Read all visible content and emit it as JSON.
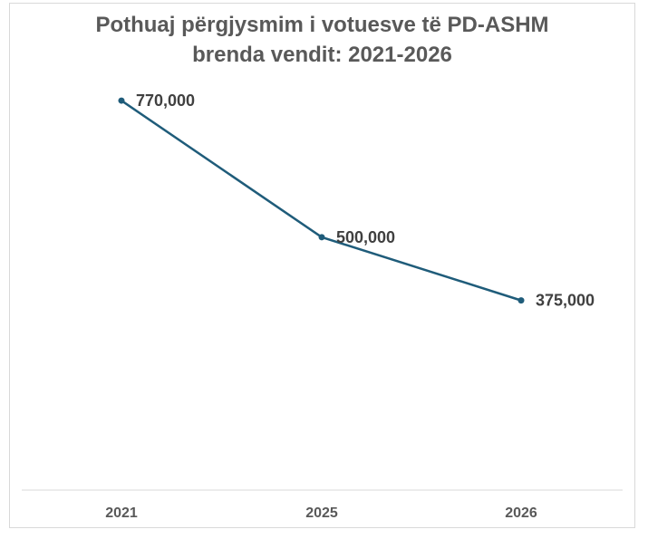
{
  "chart_data": {
    "type": "line",
    "title_lines": [
      "Pothuaj përgjysmim i votuesve të PD-ASHM",
      "brenda vendit: 2021-2026"
    ],
    "categories": [
      "2021",
      "2025",
      "2026"
    ],
    "series": [
      {
        "values": [
          770000,
          500000,
          375000
        ]
      }
    ],
    "data_labels": [
      "770,000",
      "500,000",
      "375,000"
    ],
    "line_color": "#1f5c7a",
    "ylim": [
      0,
      960000
    ],
    "grid": false,
    "legend": "none"
  }
}
